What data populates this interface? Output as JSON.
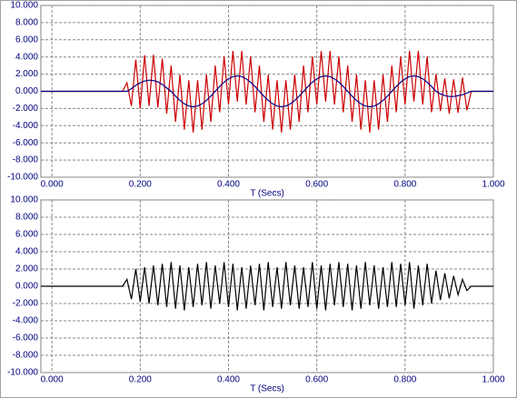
{
  "chart_data": [
    {
      "type": "line",
      "xlabel": "T (Secs)",
      "x": [
        -0.025,
        0.16,
        0.17,
        0.18,
        0.19,
        0.2,
        0.21,
        0.22,
        0.23,
        0.24,
        0.25,
        0.26,
        0.27,
        0.28,
        0.29,
        0.3,
        0.31,
        0.32,
        0.33,
        0.34,
        0.35,
        0.36,
        0.37,
        0.38,
        0.39,
        0.4,
        0.41,
        0.42,
        0.43,
        0.44,
        0.45,
        0.46,
        0.47,
        0.48,
        0.49,
        0.5,
        0.51,
        0.52,
        0.53,
        0.54,
        0.55,
        0.56,
        0.57,
        0.58,
        0.59,
        0.6,
        0.61,
        0.62,
        0.63,
        0.64,
        0.65,
        0.66,
        0.67,
        0.68,
        0.69,
        0.7,
        0.71,
        0.72,
        0.73,
        0.74,
        0.75,
        0.76,
        0.77,
        0.78,
        0.79,
        0.8,
        0.81,
        0.82,
        0.83,
        0.84,
        0.85,
        0.86,
        0.87,
        0.88,
        0.89,
        0.9,
        0.91,
        0.92,
        0.93,
        0.94,
        0.95,
        1.0
      ],
      "series": [
        {
          "color": "#cc0000",
          "values": [
            0,
            0,
            1.0,
            -1.7,
            3.7,
            -2.0,
            4.2,
            -1.7,
            4.25,
            -1.9,
            3.8,
            -2.6,
            3.0,
            -3.56,
            1.94,
            -4.46,
            1.29,
            -4.8,
            1.29,
            -4.46,
            1.94,
            -3.56,
            3.0,
            -2.44,
            4.06,
            -1.54,
            4.71,
            -1.2,
            4.71,
            -1.54,
            4.06,
            -2.44,
            3.0,
            -3.56,
            1.94,
            -4.46,
            1.29,
            -4.8,
            1.29,
            -4.46,
            1.94,
            -3.56,
            3.0,
            -2.44,
            4.06,
            -1.54,
            4.71,
            -1.2,
            4.71,
            -1.54,
            4.06,
            -2.44,
            3.0,
            -3.56,
            1.94,
            -4.46,
            1.29,
            -4.8,
            1.29,
            -4.46,
            1.94,
            -3.56,
            3.0,
            -2.44,
            4.06,
            -1.54,
            4.71,
            -1.2,
            4.71,
            -1.54,
            4.06,
            -2.44,
            2.0,
            -2.3,
            1.5,
            -2.6,
            1.4,
            -2.5,
            1.6,
            -2.2,
            0,
            0
          ]
        },
        {
          "color": "#00008b",
          "values": [
            0,
            0,
            0,
            0.3,
            0.7,
            1.0,
            1.2,
            1.3,
            1.25,
            1.1,
            0.8,
            0.4,
            0,
            -0.56,
            -1.06,
            -1.46,
            -1.71,
            -1.8,
            -1.71,
            -1.46,
            -1.06,
            -0.56,
            0,
            0.56,
            1.06,
            1.46,
            1.71,
            1.8,
            1.71,
            1.46,
            1.06,
            0.56,
            0,
            -0.56,
            -1.06,
            -1.46,
            -1.71,
            -1.8,
            -1.71,
            -1.46,
            -1.06,
            -0.56,
            0,
            0.56,
            1.06,
            1.46,
            1.71,
            1.8,
            1.71,
            1.46,
            1.06,
            0.56,
            0,
            -0.56,
            -1.06,
            -1.46,
            -1.71,
            -1.8,
            -1.71,
            -1.46,
            -1.06,
            -0.56,
            0,
            0.56,
            1.06,
            1.46,
            1.71,
            1.8,
            1.71,
            1.46,
            1.06,
            0.56,
            0,
            -0.3,
            -0.5,
            -0.6,
            -0.6,
            -0.5,
            -0.4,
            -0.2,
            0,
            0
          ]
        }
      ],
      "xlim": [
        -0.025,
        1.0
      ],
      "ylim": [
        -10,
        10
      ],
      "xticks": [
        {
          "value": 0,
          "label": "0.000"
        },
        {
          "value": 0.2,
          "label": "0.200"
        },
        {
          "value": 0.4,
          "label": "0.400"
        },
        {
          "value": 0.6,
          "label": "0.600"
        },
        {
          "value": 0.8,
          "label": "0.800"
        },
        {
          "value": 1,
          "label": "1.000"
        }
      ],
      "yticks": [
        {
          "value": 10,
          "label": "10.000"
        },
        {
          "value": 8,
          "label": "8.000"
        },
        {
          "value": 6,
          "label": "6.000"
        },
        {
          "value": 4,
          "label": "4.000"
        },
        {
          "value": 2,
          "label": "2.000"
        },
        {
          "value": 0,
          "label": "0.000"
        },
        {
          "value": -2,
          "label": "-2.000"
        },
        {
          "value": -4,
          "label": "-4.000"
        },
        {
          "value": -6,
          "label": "-6.000"
        },
        {
          "value": -8,
          "label": "-8.000"
        },
        {
          "value": -10,
          "label": "-10.000"
        }
      ],
      "grid": true
    },
    {
      "type": "line",
      "xlabel": "T (Secs)",
      "x": [
        -0.025,
        0.16,
        0.17,
        0.18,
        0.19,
        0.2,
        0.21,
        0.22,
        0.23,
        0.24,
        0.25,
        0.26,
        0.27,
        0.28,
        0.29,
        0.3,
        0.31,
        0.32,
        0.33,
        0.34,
        0.35,
        0.36,
        0.37,
        0.38,
        0.39,
        0.4,
        0.41,
        0.42,
        0.43,
        0.44,
        0.45,
        0.46,
        0.47,
        0.48,
        0.49,
        0.5,
        0.51,
        0.52,
        0.53,
        0.54,
        0.55,
        0.56,
        0.57,
        0.58,
        0.59,
        0.6,
        0.61,
        0.62,
        0.63,
        0.64,
        0.65,
        0.66,
        0.67,
        0.68,
        0.69,
        0.7,
        0.71,
        0.72,
        0.73,
        0.74,
        0.75,
        0.76,
        0.77,
        0.78,
        0.79,
        0.8,
        0.81,
        0.82,
        0.83,
        0.84,
        0.85,
        0.86,
        0.87,
        0.88,
        0.89,
        0.9,
        0.91,
        0.92,
        0.93,
        0.94,
        0.95,
        1.0
      ],
      "series": [
        {
          "color": "#000000",
          "values": [
            0,
            0,
            0.8,
            -1.5,
            2.0,
            -1.8,
            2.2,
            -2.0,
            2.4,
            -2.2,
            2.6,
            -2.4,
            2.8,
            -2.6,
            2.4,
            -2.8,
            2.2,
            -2.4,
            2.6,
            -2.2,
            2.8,
            -2.6,
            2.4,
            -2.0,
            2.8,
            -2.4,
            2.6,
            -2.8,
            2.2,
            -2.6,
            2.4,
            -2.2,
            2.6,
            -2.8,
            2.8,
            -2.4,
            2.2,
            -2.6,
            2.8,
            -2.2,
            2.4,
            -2.6,
            2.2,
            -2.4,
            2.8,
            -2.6,
            2.4,
            -2.8,
            2.6,
            -2.2,
            2.8,
            -2.4,
            2.6,
            -2.8,
            2.4,
            -2.6,
            2.8,
            -2.2,
            2.4,
            -2.6,
            2.2,
            -2.4,
            2.8,
            -2.4,
            2.6,
            -2.2,
            2.8,
            -2.6,
            2.4,
            -2.2,
            2.6,
            -2.0,
            1.8,
            -1.6,
            1.5,
            -1.4,
            1.2,
            -1.0,
            0.8,
            -0.5,
            0,
            0
          ]
        }
      ],
      "xlim": [
        -0.025,
        1.0
      ],
      "ylim": [
        -10,
        10
      ],
      "xticks": [
        {
          "value": 0,
          "label": "0.000"
        },
        {
          "value": 0.2,
          "label": "0.200"
        },
        {
          "value": 0.4,
          "label": "0.400"
        },
        {
          "value": 0.6,
          "label": "0.600"
        },
        {
          "value": 0.8,
          "label": "0.800"
        },
        {
          "value": 1,
          "label": "1.000"
        }
      ],
      "yticks": [
        {
          "value": 10,
          "label": "10.000"
        },
        {
          "value": 8,
          "label": "8.000"
        },
        {
          "value": 6,
          "label": "6.000"
        },
        {
          "value": 4,
          "label": "4.000"
        },
        {
          "value": 2,
          "label": "2.000"
        },
        {
          "value": 0,
          "label": "0.000"
        },
        {
          "value": -2,
          "label": "-2.000"
        },
        {
          "value": -4,
          "label": "-4.000"
        },
        {
          "value": -6,
          "label": "-6.000"
        },
        {
          "value": -8,
          "label": "-8.000"
        },
        {
          "value": -10,
          "label": "-10.000"
        }
      ],
      "grid": true
    }
  ]
}
